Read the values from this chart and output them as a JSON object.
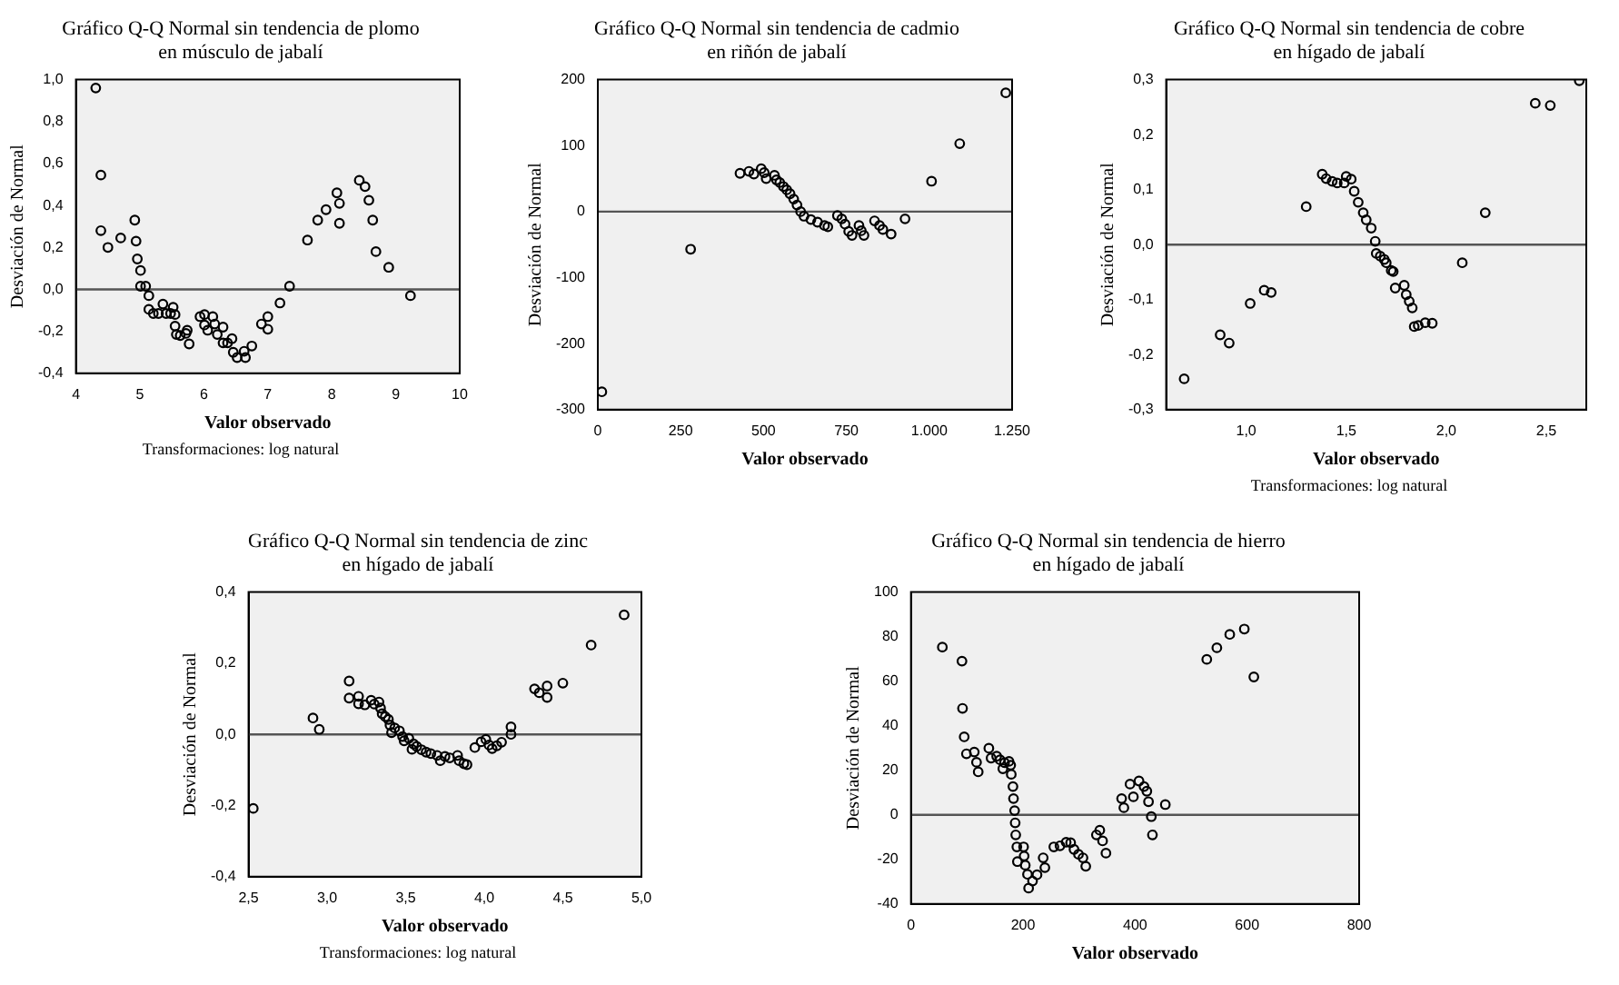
{
  "chart_data": [
    {
      "type": "scatter",
      "title": "Gráfico Q-Q Normal sin tendencia de plomo en músculo de jabalí",
      "xlabel": "Valor observado",
      "ylabel": "Desviación de Normal",
      "annotations": [
        "Transformaciones: log natural"
      ],
      "marker": "circle",
      "grid": false,
      "color": "#000000",
      "ref_lines": [
        {
          "axis": "y",
          "value": 0
        }
      ],
      "xlim": [
        4,
        10
      ],
      "xticks": [
        4,
        5,
        6,
        7,
        8,
        9,
        10
      ],
      "ylim": [
        -0.4,
        1.0
      ],
      "yticks": [
        {
          "value": -0.4,
          "label": "-0,4"
        },
        {
          "value": -0.2,
          "label": "-0,2"
        },
        {
          "value": 0,
          "label": "0,0"
        },
        {
          "value": 0.2,
          "label": "0,2"
        },
        {
          "value": 0.4,
          "label": "0,4"
        },
        {
          "value": 0.6,
          "label": "0,6"
        },
        {
          "value": 0.8,
          "label": "0,8"
        },
        {
          "value": 1.0,
          "label": "1,0"
        }
      ],
      "x": [
        4.31,
        4.39,
        4.39,
        4.5,
        4.7,
        4.92,
        4.94,
        4.96,
        5.01,
        5.01,
        5.09,
        5.14,
        5.14,
        5.21,
        5.29,
        5.36,
        5.41,
        5.48,
        5.52,
        5.55,
        5.55,
        5.57,
        5.63,
        5.72,
        5.74,
        5.77,
        5.94,
        6.01,
        6.01,
        6.06,
        6.14,
        6.17,
        6.21,
        6.3,
        6.3,
        6.37,
        6.44,
        6.46,
        6.52,
        6.63,
        6.65,
        6.75,
        6.9,
        7.0,
        7.0,
        7.19,
        7.34,
        7.62,
        7.78,
        7.91,
        8.08,
        8.12,
        8.12,
        8.43,
        8.52,
        8.58,
        8.64,
        8.69,
        8.89,
        9.23
      ],
      "values": [
        0.96,
        0.545,
        0.28,
        0.2,
        0.245,
        0.33,
        0.23,
        0.145,
        0.09,
        0.015,
        0.015,
        -0.03,
        -0.095,
        -0.115,
        -0.115,
        -0.07,
        -0.115,
        -0.115,
        -0.085,
        -0.12,
        -0.175,
        -0.215,
        -0.22,
        -0.21,
        -0.195,
        -0.26,
        -0.13,
        -0.12,
        -0.17,
        -0.195,
        -0.13,
        -0.165,
        -0.215,
        -0.18,
        -0.255,
        -0.255,
        -0.235,
        -0.3,
        -0.325,
        -0.295,
        -0.325,
        -0.27,
        -0.165,
        -0.13,
        -0.19,
        -0.065,
        0.015,
        0.235,
        0.33,
        0.38,
        0.46,
        0.41,
        0.315,
        0.52,
        0.49,
        0.425,
        0.33,
        0.18,
        0.105,
        -0.03
      ]
    },
    {
      "type": "scatter",
      "title": "Gráfico Q-Q Normal sin tendencia de cadmio en riñón de jabalí",
      "xlabel": "Valor observado",
      "ylabel": "Desviación de Normal",
      "marker": "circle",
      "grid": false,
      "color": "#000000",
      "ref_lines": [
        {
          "axis": "y",
          "value": 0
        }
      ],
      "xlim": [
        0,
        1250
      ],
      "xticks": [
        0,
        250,
        500,
        750,
        {
          "value": 1000,
          "label": "1.000"
        },
        {
          "value": 1250,
          "label": "1.250"
        }
      ],
      "ylim": [
        -300,
        200
      ],
      "yticks": [
        -300,
        -200,
        -100,
        0,
        100,
        200
      ],
      "x": [
        12,
        280,
        429,
        456,
        471,
        493,
        502,
        508,
        533,
        539,
        549,
        560,
        570,
        580,
        591,
        601,
        612,
        622,
        643,
        663,
        684,
        694,
        723,
        736,
        746,
        757,
        767,
        788,
        795,
        803,
        835,
        850,
        860,
        885,
        927,
        1007,
        1092,
        1231
      ],
      "values": [
        -273,
        -57,
        58,
        61,
        57,
        65,
        59,
        50,
        55,
        48,
        44,
        38,
        33,
        27,
        19,
        10,
        0,
        -7,
        -12,
        -16,
        -21,
        -23,
        -6,
        -11,
        -19,
        -30,
        -36,
        -21,
        -29,
        -36,
        -14,
        -21,
        -27,
        -34,
        -11,
        46,
        103,
        180
      ]
    },
    {
      "type": "scatter",
      "title": "Gráfico Q-Q Normal sin tendencia de cobre en hígado de jabalí",
      "xlabel": "Valor observado",
      "ylabel": "Desviación de Normal",
      "annotations": [
        "Transformaciones: log natural"
      ],
      "marker": "circle",
      "grid": false,
      "color": "#000000",
      "ref_lines": [
        {
          "axis": "y",
          "value": 0
        }
      ],
      "xlim": [
        0.6,
        2.7
      ],
      "xticks": [
        {
          "value": 1.0,
          "label": "1,0"
        },
        {
          "value": 1.5,
          "label": "1,5"
        },
        {
          "value": 2.0,
          "label": "2,0"
        },
        {
          "value": 2.5,
          "label": "2,5"
        }
      ],
      "ylim": [
        -0.3,
        0.3
      ],
      "yticks": [
        {
          "value": -0.3,
          "label": "-0,3"
        },
        {
          "value": -0.2,
          "label": "-0,2"
        },
        {
          "value": -0.1,
          "label": "-0,1"
        },
        {
          "value": 0,
          "label": "0,0"
        },
        {
          "value": 0.1,
          "label": "0,1"
        },
        {
          "value": 0.2,
          "label": "0,2"
        },
        {
          "value": 0.3,
          "label": "0,3"
        }
      ],
      "x": [
        0.69,
        0.87,
        0.915,
        1.02,
        1.09,
        1.125,
        1.3,
        1.38,
        1.4,
        1.43,
        1.455,
        1.49,
        1.5,
        1.525,
        1.54,
        1.56,
        1.585,
        1.6,
        1.625,
        1.645,
        1.65,
        1.67,
        1.69,
        1.7,
        1.725,
        1.735,
        1.745,
        1.79,
        1.8,
        1.815,
        1.83,
        1.84,
        1.86,
        1.895,
        1.93,
        2.08,
        2.195,
        2.445,
        2.52,
        2.665
      ],
      "values": [
        -0.244,
        -0.164,
        -0.179,
        -0.107,
        -0.083,
        -0.087,
        0.069,
        0.128,
        0.12,
        0.115,
        0.112,
        0.112,
        0.124,
        0.119,
        0.097,
        0.077,
        0.058,
        0.045,
        0.03,
        0.006,
        -0.016,
        -0.021,
        -0.027,
        -0.033,
        -0.047,
        -0.049,
        -0.079,
        -0.074,
        -0.091,
        -0.103,
        -0.115,
        -0.149,
        -0.147,
        -0.142,
        -0.143,
        -0.033,
        0.058,
        0.257,
        0.253,
        0.298
      ]
    },
    {
      "type": "scatter",
      "title": "Gráfico Q-Q Normal sin tendencia de zinc en hígado de jabalí",
      "xlabel": "Valor observado",
      "ylabel": "Desviación de Normal",
      "annotations": [
        "Transformaciones: log natural"
      ],
      "marker": "circle",
      "grid": false,
      "color": "#000000",
      "ref_lines": [
        {
          "axis": "y",
          "value": 0
        }
      ],
      "xlim": [
        2.5,
        5.0
      ],
      "xticks": [
        {
          "value": 2.5,
          "label": "2,5"
        },
        {
          "value": 3.0,
          "label": "3,0"
        },
        {
          "value": 3.5,
          "label": "3,5"
        },
        {
          "value": 4.0,
          "label": "4,0"
        },
        {
          "value": 4.5,
          "label": "4,5"
        },
        {
          "value": 5.0,
          "label": "5,0"
        }
      ],
      "ylim": [
        -0.4,
        0.4
      ],
      "yticks": [
        {
          "value": -0.4,
          "label": "-0,4"
        },
        {
          "value": -0.2,
          "label": "-0,2"
        },
        {
          "value": 0,
          "label": "0,0"
        },
        {
          "value": 0.2,
          "label": "0,2"
        },
        {
          "value": 0.4,
          "label": "0,4"
        }
      ],
      "x": [
        2.53,
        2.91,
        2.95,
        3.14,
        3.14,
        3.2,
        3.2,
        3.24,
        3.28,
        3.3,
        3.33,
        3.34,
        3.35,
        3.37,
        3.39,
        3.4,
        3.41,
        3.43,
        3.46,
        3.48,
        3.49,
        3.52,
        3.54,
        3.55,
        3.57,
        3.6,
        3.63,
        3.66,
        3.7,
        3.72,
        3.75,
        3.78,
        3.83,
        3.84,
        3.87,
        3.89,
        3.94,
        3.98,
        4.01,
        4.03,
        4.05,
        4.08,
        4.11,
        4.17,
        4.17,
        4.32,
        4.35,
        4.4,
        4.4,
        4.5,
        4.68,
        4.89
      ],
      "values": [
        -0.208,
        0.046,
        0.014,
        0.15,
        0.102,
        0.107,
        0.086,
        0.083,
        0.096,
        0.085,
        0.091,
        0.074,
        0.058,
        0.05,
        0.042,
        0.026,
        0.005,
        0.018,
        0.01,
        -0.006,
        -0.018,
        -0.011,
        -0.042,
        -0.027,
        -0.034,
        -0.043,
        -0.05,
        -0.054,
        -0.059,
        -0.074,
        -0.062,
        -0.066,
        -0.059,
        -0.074,
        -0.082,
        -0.085,
        -0.037,
        -0.021,
        -0.014,
        -0.03,
        -0.04,
        -0.032,
        -0.022,
        0.021,
        0.0,
        0.128,
        0.117,
        0.136,
        0.104,
        0.144,
        0.251,
        0.336
      ]
    },
    {
      "type": "scatter",
      "title": "Gráfico Q-Q Normal sin tendencia de hierro en hígado de jabalí",
      "xlabel": "Valor observado",
      "ylabel": "Desviación de Normal",
      "marker": "circle",
      "grid": false,
      "color": "#000000",
      "ref_lines": [
        {
          "axis": "y",
          "value": 0
        }
      ],
      "xlim": [
        0,
        800
      ],
      "xticks": [
        0,
        200,
        400,
        600,
        800
      ],
      "ylim": [
        -40,
        100
      ],
      "yticks": [
        -40,
        -20,
        0,
        20,
        40,
        60,
        80,
        100
      ],
      "x": [
        56,
        91,
        92,
        95,
        99,
        113,
        117,
        120,
        139,
        143,
        153,
        159,
        164,
        167,
        175,
        178,
        179,
        182,
        183,
        185,
        186,
        187,
        189,
        190,
        201,
        202,
        204,
        208,
        210,
        217,
        225,
        236,
        239,
        255,
        266,
        277,
        285,
        291,
        299,
        307,
        312,
        331,
        337,
        342,
        348,
        376,
        380,
        391,
        397,
        407,
        416,
        421,
        424,
        429,
        431,
        454,
        528,
        546,
        569,
        595,
        612
      ],
      "values": [
        75.3,
        69.0,
        47.8,
        35.0,
        27.4,
        28.2,
        23.6,
        19.3,
        29.9,
        25.5,
        26.3,
        24.7,
        20.7,
        23.4,
        24.0,
        22.3,
        18.2,
        12.7,
        7.3,
        1.9,
        -3.6,
        -9.0,
        -14.4,
        -21.0,
        -14.4,
        -18.5,
        -22.6,
        -26.7,
        -32.9,
        -29.7,
        -26.9,
        -19.3,
        -23.7,
        -14.4,
        -13.9,
        -12.3,
        -12.5,
        -15.5,
        -17.7,
        -19.3,
        -23.1,
        -9.0,
        -6.9,
        -11.7,
        -17.2,
        7.3,
        3.2,
        13.8,
        8.1,
        15.2,
        12.7,
        10.6,
        5.9,
        -0.8,
        -9.0,
        4.6,
        69.8,
        75.0,
        81.0,
        83.4,
        61.9
      ]
    }
  ]
}
